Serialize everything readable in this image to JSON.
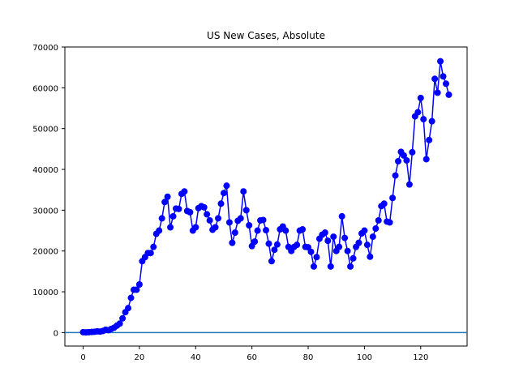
{
  "chart_data": {
    "type": "line",
    "title": "US New Cases, Absolute",
    "xlabel": "",
    "ylabel": "",
    "xlim": [
      -6.5,
      136.5
    ],
    "ylim": [
      -3300,
      70000
    ],
    "xticks": [
      0,
      20,
      40,
      60,
      80,
      100,
      120
    ],
    "yticks": [
      0,
      10000,
      20000,
      30000,
      40000,
      50000,
      60000,
      70000
    ],
    "grid": false,
    "legend": "none",
    "series": [
      {
        "color": "#0000ff",
        "marker": "circle",
        "x": [
          0,
          1,
          2,
          3,
          4,
          5,
          6,
          7,
          8,
          9,
          10,
          11,
          12,
          13,
          14,
          15,
          16,
          17,
          18,
          19,
          20,
          21,
          22,
          23,
          24,
          25,
          26,
          27,
          28,
          29,
          30,
          31,
          32,
          33,
          34,
          35,
          36,
          37,
          38,
          39,
          40,
          41,
          42,
          43,
          44,
          45,
          46,
          47,
          48,
          49,
          50,
          51,
          52,
          53,
          54,
          55,
          56,
          57,
          58,
          59,
          60,
          61,
          62,
          63,
          64,
          65,
          66,
          67,
          68,
          69,
          70,
          71,
          72,
          73,
          74,
          75,
          76,
          77,
          78,
          79,
          80,
          81,
          82,
          83,
          84,
          85,
          86,
          87,
          88,
          89,
          90,
          91,
          92,
          93,
          94,
          95,
          96,
          97,
          98,
          99,
          100,
          101,
          102,
          103,
          104,
          105,
          106,
          107,
          108,
          109,
          110,
          111,
          112,
          113,
          114,
          115,
          116,
          117,
          118,
          119,
          120,
          121,
          122,
          123,
          124,
          125,
          126,
          127,
          128,
          129,
          130
        ],
        "y": [
          100,
          50,
          100,
          150,
          200,
          300,
          250,
          400,
          700,
          600,
          900,
          1200,
          1700,
          2200,
          3500,
          5000,
          6000,
          8500,
          10500,
          10500,
          11800,
          17500,
          18500,
          19500,
          19500,
          21000,
          24200,
          25000,
          28000,
          32000,
          33300,
          25800,
          28500,
          30400,
          30300,
          34000,
          34600,
          29800,
          29500,
          25000,
          25800,
          30500,
          31000,
          30700,
          29000,
          27500,
          25200,
          25800,
          28000,
          31600,
          34200,
          36000,
          27000,
          22000,
          24500,
          27400,
          28000,
          34600,
          30000,
          26300,
          21200,
          22300,
          25000,
          27500,
          27600,
          25100,
          21800,
          17500,
          20300,
          21600,
          25300,
          26000,
          25000,
          21000,
          20000,
          21000,
          21500,
          25000,
          25300,
          21000,
          20900,
          19800,
          16200,
          18500,
          23000,
          24000,
          24500,
          22500,
          16200,
          23500,
          20000,
          21000,
          28500,
          23200,
          20000,
          16200,
          18200,
          21000,
          22000,
          24300,
          25000,
          21500,
          18600,
          23500,
          25500,
          27500,
          31000,
          31600,
          27200,
          27000,
          33000,
          38500,
          42000,
          44300,
          43400,
          42200,
          36300,
          44200,
          53000,
          54000,
          57500,
          52300,
          42500,
          47200,
          51800,
          62200,
          58800,
          66500,
          62800,
          61000,
          58300
        ]
      },
      {
        "name": "",
        "color": "#1f77b4",
        "kind": "hline",
        "y": 0
      }
    ]
  }
}
